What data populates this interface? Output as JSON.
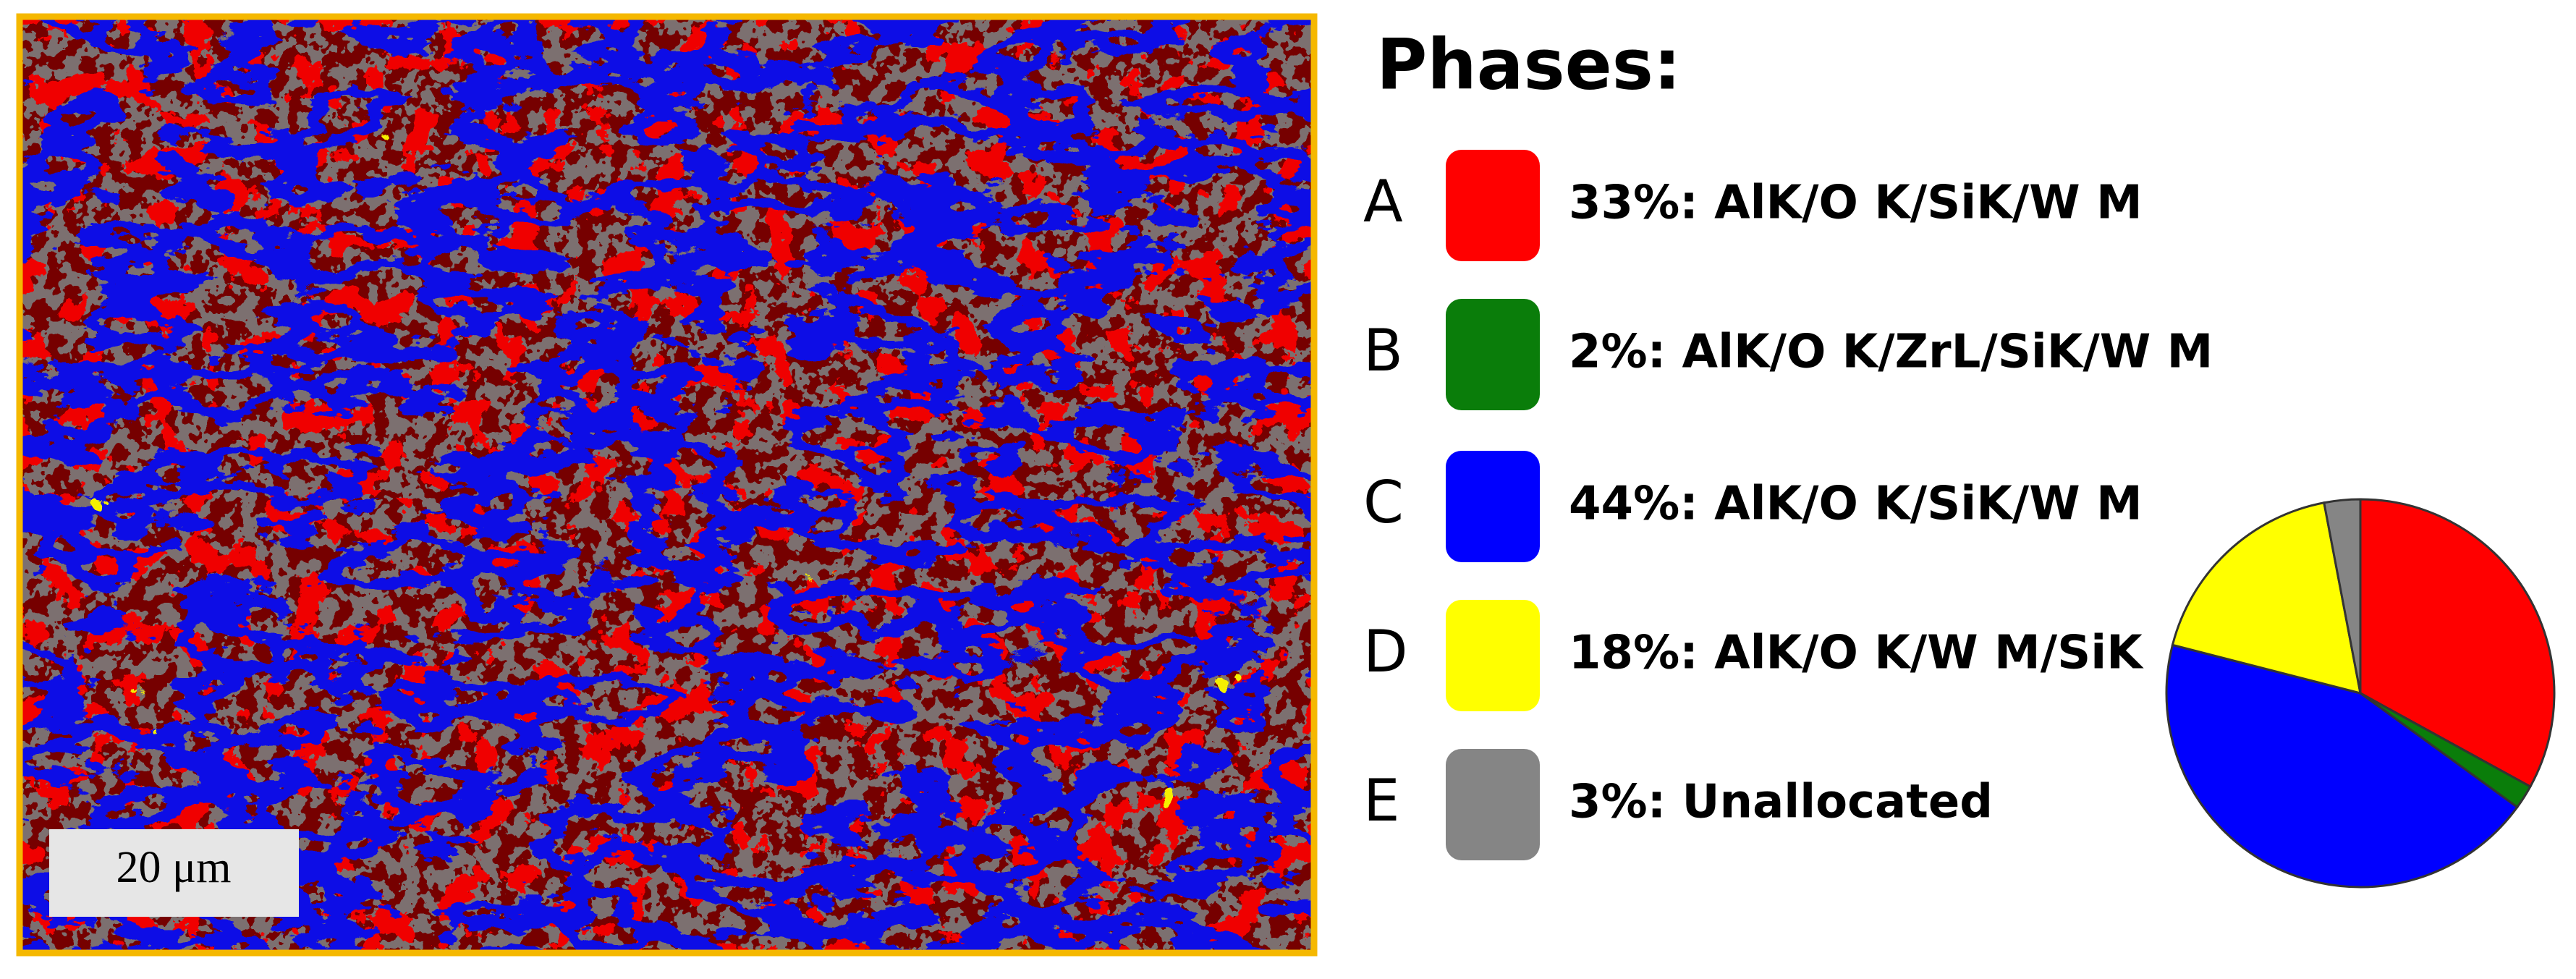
{
  "chart_data": {
    "type": "pie",
    "legend_title": "Phases:",
    "scale_bar": "20 μm",
    "categories": [
      "A",
      "B",
      "C",
      "D",
      "E"
    ],
    "labels": [
      "33%: AlK/O K/SiK/W M",
      "2%: AlK/O K/ZrL/SiK/W M",
      "44%: AlK/O K/SiK/W M",
      "18%: AlK/O K/W M/SiK",
      "3%: Unallocated"
    ],
    "values": [
      33,
      2,
      44,
      18,
      3
    ],
    "colors": [
      "#ff0000",
      "#0a7d0a",
      "#0000ff",
      "#ffff00",
      "#858585"
    ]
  }
}
